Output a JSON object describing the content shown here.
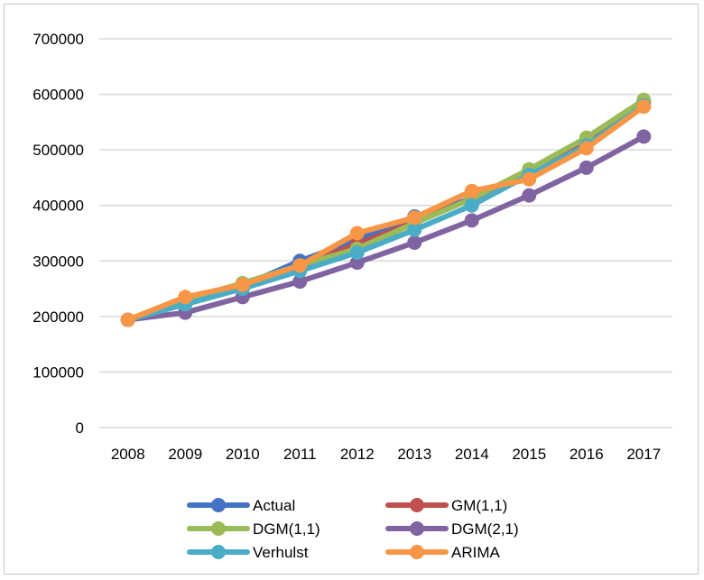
{
  "chart_data": {
    "type": "line",
    "title": "",
    "xlabel": "",
    "ylabel": "",
    "categories": [
      "2008",
      "2009",
      "2010",
      "2011",
      "2012",
      "2013",
      "2014",
      "2015",
      "2016",
      "2017"
    ],
    "ylim": [
      0,
      700000
    ],
    "yticks": [
      0,
      100000,
      200000,
      300000,
      400000,
      500000,
      600000,
      700000
    ],
    "ytick_labels": [
      "0",
      "100000",
      "200000",
      "300000",
      "400000",
      "500000",
      "600000",
      "700000"
    ],
    "grid": true,
    "legend_position": "bottom",
    "series": [
      {
        "name": "Actual",
        "color": "#4472C4",
        "values": [
          194000,
          225000,
          255000,
          300000,
          338000,
          380000,
          412000,
          455000,
          510000,
          588000
        ]
      },
      {
        "name": "GM(1,1)",
        "color": "#C0504D",
        "values": [
          194000,
          225000,
          257000,
          292000,
          330000,
          370000,
          412000,
          460000,
          515000,
          585000
        ]
      },
      {
        "name": "DGM(1,1)",
        "color": "#9BBB59",
        "values": [
          194000,
          230000,
          260000,
          292000,
          322000,
          368000,
          412000,
          465000,
          522000,
          590000
        ]
      },
      {
        "name": "DGM(2,1)",
        "color": "#8064A2",
        "values": [
          194000,
          207000,
          235000,
          263000,
          297000,
          333000,
          373000,
          418000,
          468000,
          524000
        ]
      },
      {
        "name": "Verhulst",
        "color": "#4BACC6",
        "values": [
          194000,
          222000,
          250000,
          282000,
          315000,
          356000,
          400000,
          455000,
          508000,
          580000
        ]
      },
      {
        "name": "ARIMA",
        "color": "#F79646",
        "values": [
          194000,
          235000,
          257000,
          292000,
          350000,
          378000,
          426000,
          447000,
          503000,
          578000
        ]
      }
    ]
  }
}
